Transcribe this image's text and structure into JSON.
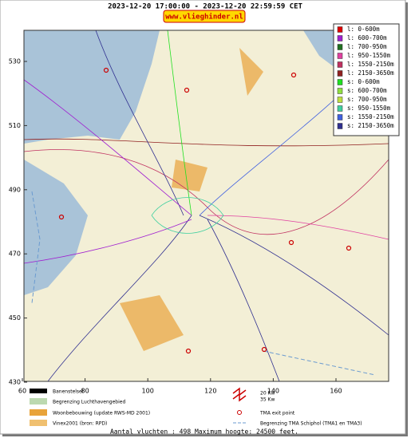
{
  "header": {
    "title": "2023-12-20 17:00:00 - 2023-12-20 22:59:59 CET",
    "site": "www.vlieghinder.nl"
  },
  "map": {
    "yticks": [
      530,
      510,
      490,
      470,
      450,
      430
    ],
    "xticks": [
      60,
      80,
      100,
      120,
      140,
      160
    ]
  },
  "legend": [
    {
      "label": "l: 0-600m",
      "color": "#e00000"
    },
    {
      "label": "l: 600-700m",
      "color": "#a020d0"
    },
    {
      "label": "l: 700-950m",
      "color": "#207020"
    },
    {
      "label": "l: 950-1550m",
      "color": "#e040a0"
    },
    {
      "label": "l: 1550-2150m",
      "color": "#c03060"
    },
    {
      "label": "l: 2150-3650m",
      "color": "#902020"
    },
    {
      "label": "s: 0-600m",
      "color": "#20e020"
    },
    {
      "label": "s: 600-700m",
      "color": "#90e040"
    },
    {
      "label": "s: 700-950m",
      "color": "#c0e040"
    },
    {
      "label": "s: 950-1550m",
      "color": "#40d0a0"
    },
    {
      "label": "s: 1550-2150m",
      "color": "#4060e0"
    },
    {
      "label": "s: 2150-3650m",
      "color": "#303090"
    }
  ],
  "key": {
    "runways": "Banenstelsel",
    "airport": "Begrenzing Luchthavengebied",
    "housing": "Woonbebouwing (update RWS-MD 2001)",
    "vinex": "Vinex2001 (bron: RPD)",
    "kw20": "20 Kw",
    "kw35": "35 Kw",
    "exit": "TMA exit point",
    "tma": "Begrenzing TMA Schiphol  (TMA1 en TMA3)"
  },
  "footer": "Aantal vluchten : 498 Maximum hoogte: 24500 feet."
}
